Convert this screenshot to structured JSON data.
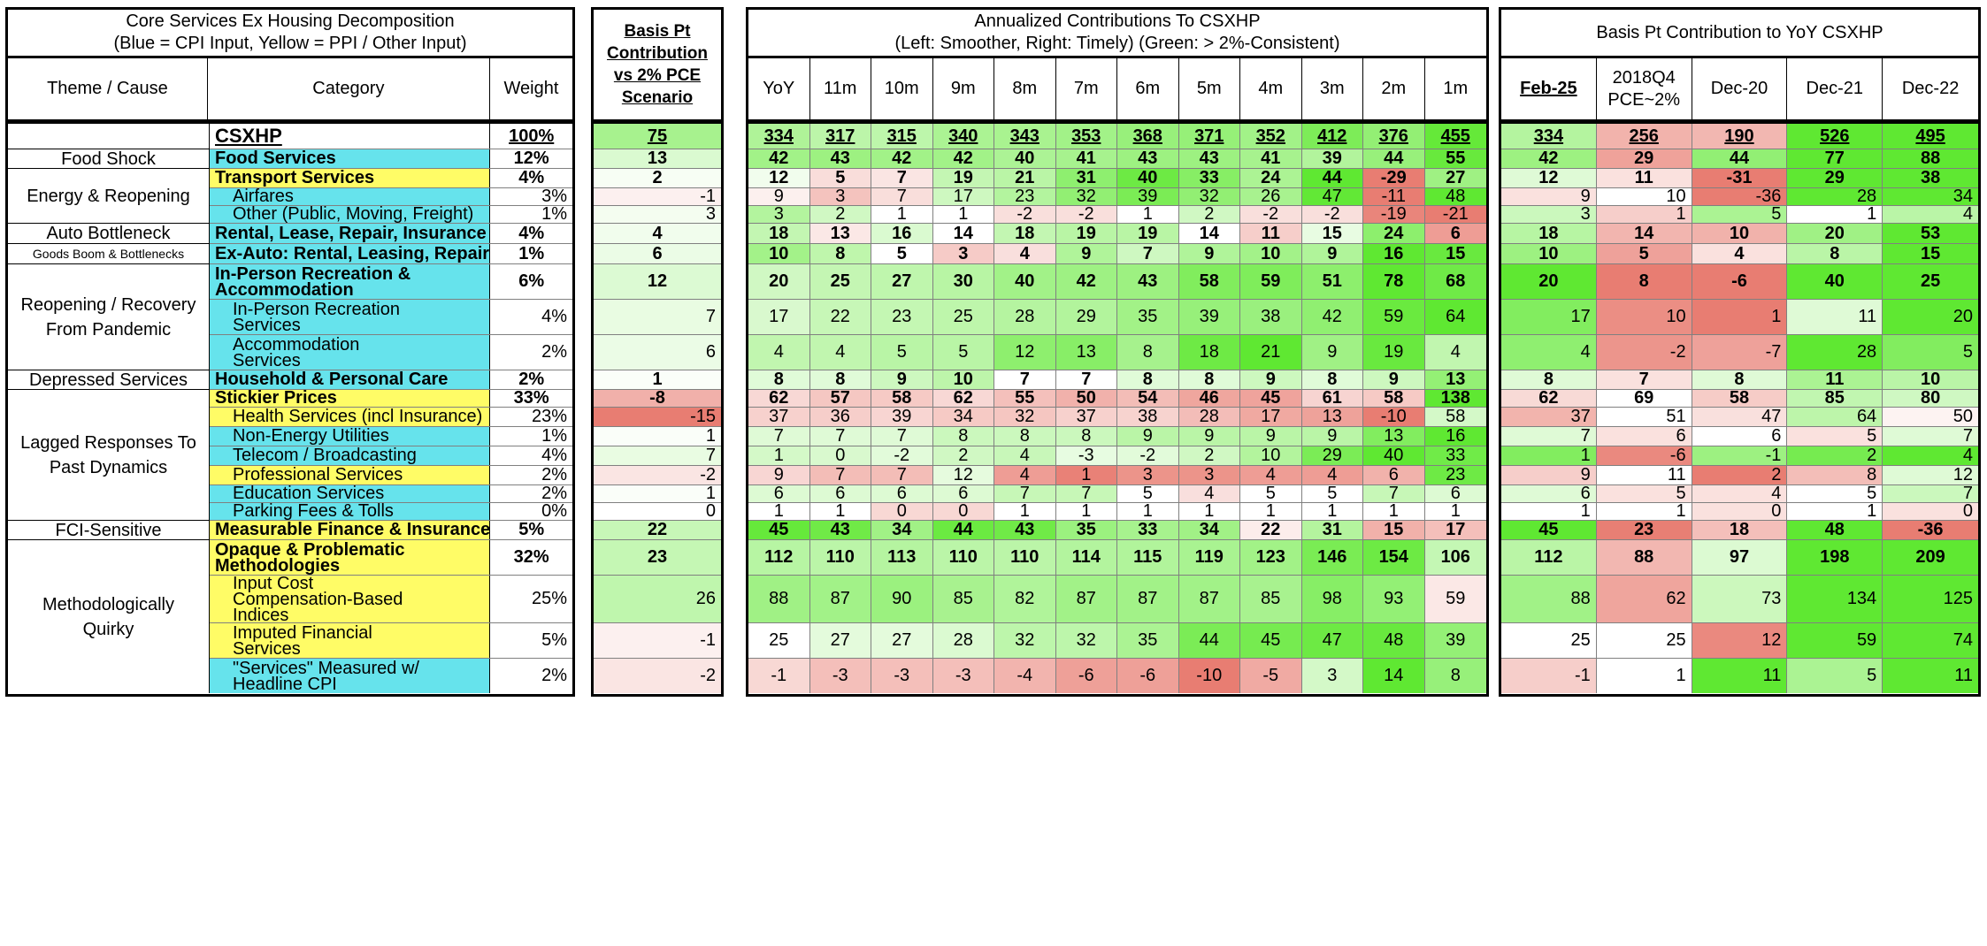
{
  "panels": {
    "core": {
      "title": "Core Services Ex Housing Decomposition",
      "subtitle": "(Blue = CPI Input, Yellow = PPI / Other Input)",
      "headers": [
        "Theme / Cause",
        "Category",
        "Weight"
      ]
    },
    "basis": {
      "title": "Basis Pt Contribution vs 2% PCE Scenario"
    },
    "annualized": {
      "title": "Annualized Contributions To CSXHP",
      "subtitle": "(Left: Smoother, Right: Timely) (Green: > 2%-Consistent)",
      "headers": [
        "YoY",
        "11m",
        "10m",
        "9m",
        "8m",
        "7m",
        "6m",
        "5m",
        "4m",
        "3m",
        "2m",
        "1m"
      ]
    },
    "yoy": {
      "title": "Basis Pt Contribution to YoY CSXHP",
      "headers": [
        "Feb-25",
        "2018Q4 PCE~2%",
        "Dec-20",
        "Dec-21",
        "Dec-22"
      ]
    }
  },
  "themes": [
    {
      "label": "",
      "rows": [
        0
      ]
    },
    {
      "label": "Food Shock",
      "rows": [
        1
      ]
    },
    {
      "label": "Energy & Reopening",
      "rows": [
        2,
        3,
        4
      ]
    },
    {
      "label": "Auto Bottleneck",
      "rows": [
        5
      ]
    },
    {
      "label": "Goods Boom & Bottlenecks",
      "rows": [
        6
      ]
    },
    {
      "label": "Reopening / Recovery From Pandemic",
      "rows": [
        7,
        8,
        9
      ]
    },
    {
      "label": "Depressed Services",
      "rows": [
        10
      ]
    },
    {
      "label": "Lagged Responses To Past Dynamics",
      "rows": [
        11,
        12,
        13,
        14,
        15,
        16,
        17
      ]
    },
    {
      "label": "FCI-Sensitive",
      "rows": [
        18
      ]
    },
    {
      "label": "Methodologically Quirky",
      "rows": [
        19,
        20,
        21,
        22
      ]
    }
  ],
  "rows": [
    {
      "category": "CSXHP",
      "weight": "100%",
      "bp": "75",
      "ann": [
        "334",
        "317",
        "315",
        "340",
        "343",
        "353",
        "368",
        "371",
        "352",
        "412",
        "376",
        "455"
      ],
      "yoy": [
        "334",
        "256",
        "190",
        "526",
        "495"
      ]
    },
    {
      "category": "Food Services",
      "weight": "12%",
      "bp": "13",
      "ann": [
        "42",
        "43",
        "42",
        "42",
        "40",
        "41",
        "43",
        "43",
        "41",
        "39",
        "44",
        "55"
      ],
      "yoy": [
        "42",
        "29",
        "44",
        "77",
        "88"
      ]
    },
    {
      "category": "Transport Services",
      "weight": "4%",
      "bp": "2",
      "ann": [
        "12",
        "5",
        "7",
        "19",
        "21",
        "31",
        "40",
        "33",
        "24",
        "44",
        "-29",
        "27"
      ],
      "yoy": [
        "12",
        "11",
        "-31",
        "29",
        "38"
      ]
    },
    {
      "category": "Airfares",
      "weight": "3%",
      "bp": "-1",
      "ann": [
        "9",
        "3",
        "7",
        "17",
        "23",
        "32",
        "39",
        "32",
        "26",
        "47",
        "-11",
        "48"
      ],
      "yoy": [
        "9",
        "10",
        "-36",
        "28",
        "34"
      ]
    },
    {
      "category": "Other (Public, Moving, Freight)",
      "weight": "1%",
      "bp": "3",
      "ann": [
        "3",
        "2",
        "1",
        "1",
        "-2",
        "-2",
        "1",
        "2",
        "-2",
        "-2",
        "-19",
        "-21"
      ],
      "yoy": [
        "3",
        "1",
        "5",
        "1",
        "4"
      ]
    },
    {
      "category": "Rental, Lease, Repair, Insurance",
      "weight": "4%",
      "bp": "4",
      "ann": [
        "18",
        "13",
        "16",
        "14",
        "18",
        "19",
        "19",
        "14",
        "11",
        "15",
        "24",
        "6"
      ],
      "yoy": [
        "18",
        "14",
        "10",
        "20",
        "53"
      ]
    },
    {
      "category": "Ex-Auto: Rental, Leasing, Repair",
      "weight": "1%",
      "bp": "6",
      "ann": [
        "10",
        "8",
        "5",
        "3",
        "4",
        "9",
        "7",
        "9",
        "10",
        "9",
        "16",
        "15"
      ],
      "yoy": [
        "10",
        "5",
        "4",
        "8",
        "15"
      ]
    },
    {
      "category": "In-Person Recreation & Accommodation",
      "weight": "6%",
      "bp": "12",
      "ann": [
        "20",
        "25",
        "27",
        "30",
        "40",
        "42",
        "43",
        "58",
        "59",
        "51",
        "78",
        "68"
      ],
      "yoy": [
        "20",
        "8",
        "-6",
        "40",
        "25"
      ]
    },
    {
      "category": "In-Person Recreation Services",
      "weight": "4%",
      "bp": "7",
      "ann": [
        "17",
        "22",
        "23",
        "25",
        "28",
        "29",
        "35",
        "39",
        "38",
        "42",
        "59",
        "64"
      ],
      "yoy": [
        "17",
        "10",
        "1",
        "11",
        "20"
      ]
    },
    {
      "category": "Accommodation Services",
      "weight": "2%",
      "bp": "6",
      "ann": [
        "4",
        "4",
        "5",
        "5",
        "12",
        "13",
        "8",
        "18",
        "21",
        "9",
        "19",
        "4"
      ],
      "yoy": [
        "4",
        "-2",
        "-7",
        "28",
        "5"
      ]
    },
    {
      "category": "Household & Personal Care",
      "weight": "2%",
      "bp": "1",
      "ann": [
        "8",
        "8",
        "9",
        "10",
        "7",
        "7",
        "8",
        "8",
        "9",
        "8",
        "9",
        "13"
      ],
      "yoy": [
        "8",
        "7",
        "8",
        "11",
        "10"
      ]
    },
    {
      "category": "Stickier Prices",
      "weight": "33%",
      "bp": "-8",
      "ann": [
        "62",
        "57",
        "58",
        "62",
        "55",
        "50",
        "54",
        "46",
        "45",
        "61",
        "58",
        "138"
      ],
      "yoy": [
        "62",
        "69",
        "58",
        "85",
        "80"
      ]
    },
    {
      "category": "Health Services (incl Insurance)",
      "weight": "23%",
      "bp": "-15",
      "ann": [
        "37",
        "36",
        "39",
        "34",
        "32",
        "37",
        "38",
        "28",
        "17",
        "13",
        "-10",
        "58"
      ],
      "yoy": [
        "37",
        "51",
        "47",
        "64",
        "50"
      ]
    },
    {
      "category": "Non-Energy Utilities",
      "weight": "1%",
      "bp": "1",
      "ann": [
        "7",
        "7",
        "7",
        "8",
        "8",
        "8",
        "9",
        "9",
        "9",
        "9",
        "13",
        "16"
      ],
      "yoy": [
        "7",
        "6",
        "6",
        "5",
        "7"
      ]
    },
    {
      "category": "Telecom / Broadcasting",
      "weight": "4%",
      "bp": "7",
      "ann": [
        "1",
        "0",
        "-2",
        "2",
        "4",
        "-3",
        "-2",
        "2",
        "10",
        "29",
        "40",
        "33"
      ],
      "yoy": [
        "1",
        "-6",
        "-1",
        "2",
        "4"
      ]
    },
    {
      "category": "Professional Services",
      "weight": "2%",
      "bp": "-2",
      "ann": [
        "9",
        "7",
        "7",
        "12",
        "4",
        "1",
        "3",
        "3",
        "4",
        "4",
        "6",
        "23"
      ],
      "yoy": [
        "9",
        "11",
        "2",
        "8",
        "12"
      ]
    },
    {
      "category": "Education Services",
      "weight": "2%",
      "bp": "1",
      "ann": [
        "6",
        "6",
        "6",
        "6",
        "7",
        "7",
        "5",
        "4",
        "5",
        "5",
        "7",
        "6"
      ],
      "yoy": [
        "6",
        "5",
        "4",
        "5",
        "7"
      ]
    },
    {
      "category": "Parking Fees & Tolls",
      "weight": "0%",
      "bp": "0",
      "ann": [
        "1",
        "1",
        "0",
        "0",
        "1",
        "1",
        "1",
        "1",
        "1",
        "1",
        "1",
        "1"
      ],
      "yoy": [
        "1",
        "1",
        "0",
        "1",
        "0"
      ]
    },
    {
      "category": "Measurable Finance & Insurance",
      "weight": "5%",
      "bp": "22",
      "ann": [
        "45",
        "43",
        "34",
        "44",
        "43",
        "35",
        "33",
        "34",
        "22",
        "31",
        "15",
        "17"
      ],
      "yoy": [
        "45",
        "23",
        "18",
        "48",
        "-36"
      ]
    },
    {
      "category": "Opaque & Problematic Methodologies",
      "weight": "32%",
      "bp": "23",
      "ann": [
        "112",
        "110",
        "113",
        "110",
        "110",
        "114",
        "115",
        "119",
        "123",
        "146",
        "154",
        "106"
      ],
      "yoy": [
        "112",
        "88",
        "97",
        "198",
        "209"
      ]
    },
    {
      "category": "Input Cost Compensation-Based Indices",
      "weight": "25%",
      "bp": "26",
      "ann": [
        "88",
        "87",
        "90",
        "85",
        "82",
        "87",
        "87",
        "87",
        "85",
        "98",
        "93",
        "59"
      ],
      "yoy": [
        "88",
        "62",
        "73",
        "134",
        "125"
      ]
    },
    {
      "category": "Imputed Financial Services",
      "weight": "5%",
      "bp": "-1",
      "ann": [
        "25",
        "27",
        "27",
        "28",
        "32",
        "32",
        "35",
        "44",
        "45",
        "47",
        "48",
        "39"
      ],
      "yoy": [
        "25",
        "25",
        "12",
        "59",
        "74"
      ]
    },
    {
      "category": "\"Services\" Measured w/ Headline CPI",
      "weight": "2%",
      "bp": "-2",
      "ann": [
        "-1",
        "-3",
        "-3",
        "-3",
        "-4",
        "-6",
        "-6",
        "-10",
        "-5",
        "3",
        "14",
        "8"
      ],
      "yoy": [
        "-1",
        "1",
        "11",
        "5",
        "11"
      ]
    }
  ]
}
